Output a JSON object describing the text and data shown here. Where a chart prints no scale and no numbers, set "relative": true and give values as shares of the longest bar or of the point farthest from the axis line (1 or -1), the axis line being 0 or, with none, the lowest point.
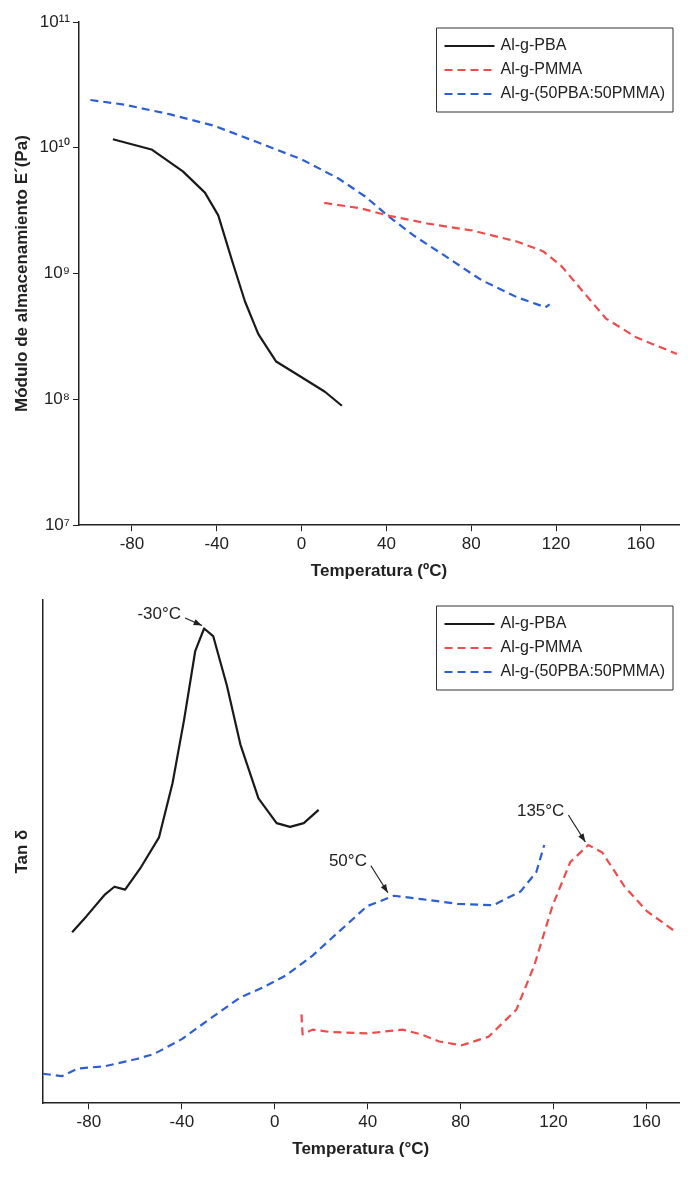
{
  "chart_data": [
    {
      "type": "line",
      "xlabel": "Temperatura (ºC)",
      "ylabel": "Módulo de almacenamiento E´(Pa)",
      "xlim": [
        -105,
        178
      ],
      "xticks": [
        -80,
        -40,
        0,
        40,
        80,
        120,
        160
      ],
      "log": "y",
      "ylim": [
        10000000.0,
        100000000000.0
      ],
      "yticks": [
        {
          "value": 10000000.0,
          "label": "10⁷"
        },
        {
          "value": 100000000.0,
          "label": "10⁸"
        },
        {
          "value": 1000000000.0,
          "label": "10⁹"
        },
        {
          "value": 10000000000.0,
          "label": "10¹⁰"
        },
        {
          "value": 100000000000.0,
          "label": "10¹¹"
        }
      ],
      "legend": "top right",
      "marker": "none",
      "series": [
        {
          "name": "Al-g-PBA",
          "color": "#1a1a1a",
          "line_style": "solid",
          "x": [
            -89,
            -70.8,
            -56,
            -45.6,
            -39.3,
            -33,
            -26.7,
            -20.4,
            -12,
            0,
            11,
            19
          ],
          "values": [
            11700000000.0,
            9700000000.0,
            6500000000.0,
            4400000000.0,
            2900000000.0,
            1300000000.0,
            600000000.0,
            330000000.0,
            200000000.0,
            150000000.0,
            115000000.0,
            89000000.0
          ]
        },
        {
          "name": "Al-g-PMMA",
          "color": "#f04b4b",
          "line_style": "dashed",
          "x": [
            10.7,
            28,
            40.5,
            59.5,
            80.5,
            101.5,
            114,
            122.5,
            133,
            143.5,
            158,
            177
          ],
          "values": [
            3650000000.0,
            3300000000.0,
            2900000000.0,
            2500000000.0,
            2200000000.0,
            1800000000.0,
            1500000000.0,
            1150000000.0,
            710000000.0,
            440000000.0,
            310000000.0,
            230000000.0
          ]
        },
        {
          "name": "Al-g-(50PBA:50PMMA)",
          "color": "#2c5fd4",
          "line_style": "dashed",
          "x": [
            -99.6,
            -83.4,
            -62.4,
            -41.4,
            -20.4,
            0,
            17.4,
            30,
            40.5,
            53,
            68,
            84.7,
            101.5,
            115,
            117
          ],
          "values": [
            24000000000.0,
            22000000000.0,
            18500000000.0,
            15000000000.0,
            11000000000.0,
            8100000000.0,
            5700000000.0,
            4100000000.0,
            2900000000.0,
            2000000000.0,
            1370000000.0,
            890000000.0,
            650000000.0,
            540000000.0,
            570000000.0
          ]
        }
      ]
    },
    {
      "type": "line",
      "xlabel": "Temperatura (°C)",
      "ylabel": "Tan δ",
      "xlim": [
        -100,
        174
      ],
      "xticks": [
        -80,
        -40,
        0,
        40,
        80,
        120,
        160
      ],
      "relative": true,
      "tick_labels": "x",
      "legend": "top right",
      "marker": "none",
      "annotations": [
        {
          "text": "-30°C",
          "x": -30,
          "y": 1
        },
        {
          "text": "50°C",
          "x": 50,
          "y": 0.437
        },
        {
          "text": "135°C",
          "x": 135,
          "y": 0.544
        }
      ],
      "series": [
        {
          "name": "Al-g-PBA",
          "color": "#1a1a1a",
          "line_style": "solid",
          "x": [
            -87.2,
            -81,
            -73,
            -69,
            -64.4,
            -57.6,
            -49.8,
            -44,
            -39,
            -34.2,
            -30.4,
            -26.5,
            -20.6,
            -14.8,
            -7,
            0.8,
            6.6,
            12.5,
            18.9
          ],
          "values": [
            0.36,
            0.394,
            0.44,
            0.456,
            0.45,
            0.497,
            0.56,
            0.674,
            0.808,
            0.953,
            1,
            0.984,
            0.88,
            0.756,
            0.642,
            0.59,
            0.582,
            0.59,
            0.618
          ]
        },
        {
          "name": "Al-g-PMMA",
          "color": "#f04b4b",
          "line_style": "dashed",
          "x": [
            11.5,
            12,
            16.3,
            24,
            39.7,
            55,
            63,
            70.8,
            80.5,
            92,
            104,
            111.7,
            119.5,
            127.2,
            135,
            141,
            150.6,
            160.3,
            172
          ],
          "values": [
            0.187,
            0.145,
            0.155,
            0.15,
            0.147,
            0.155,
            0.145,
            0.13,
            0.122,
            0.14,
            0.197,
            0.29,
            0.415,
            0.508,
            0.544,
            0.528,
            0.456,
            0.404,
            0.363
          ]
        },
        {
          "name": "Al-g-(50PBA:50PMMA)",
          "color": "#2c5fd4",
          "line_style": "dashed",
          "x": [
            -99.8,
            -91.6,
            -84.8,
            -73,
            -59.5,
            -51.8,
            -40,
            -28.4,
            -14.8,
            -5,
            4.7,
            16.3,
            28,
            39.7,
            51.4,
            63,
            78.6,
            94,
            105.8,
            112.6,
            116
          ],
          "values": [
            0.062,
            0.057,
            0.073,
            0.078,
            0.093,
            0.104,
            0.135,
            0.176,
            0.223,
            0.244,
            0.269,
            0.311,
            0.363,
            0.415,
            0.437,
            0.43,
            0.42,
            0.417,
            0.446,
            0.487,
            0.544
          ]
        }
      ]
    }
  ]
}
